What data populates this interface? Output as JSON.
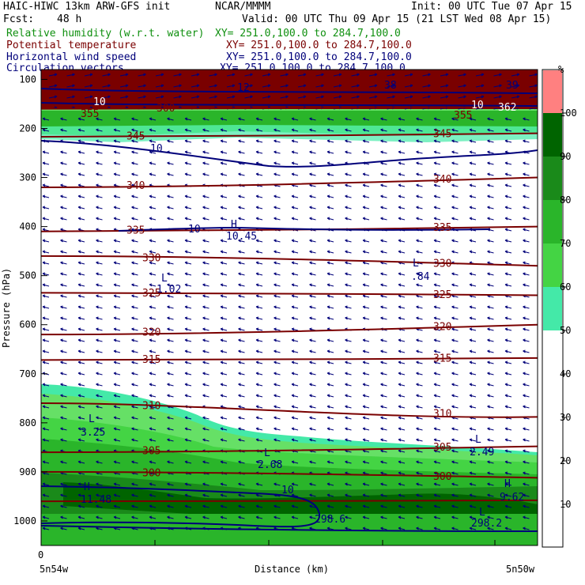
{
  "header": {
    "model": "HAIC-HIWC 13km ARW-GFS init",
    "org": "NCAR/MMMM",
    "init": "Init: 00 UTC Tue 07 Apr 15",
    "fcst_label": "Fcst:",
    "fcst_value": "48 h",
    "valid": "Valid: 00 UTC Thu 09 Apr 15 (21 LST Wed 08 Apr 15)"
  },
  "fields": [
    {
      "name": "Relative humidity (w.r.t. water)",
      "xy": "XY= 251.0,100.0 to 284.7,100.0",
      "color": "#109010"
    },
    {
      "name": "Potential temperature",
      "xy": "XY= 251.0,100.0 to 284.7,100.0",
      "color": "#7a0000"
    },
    {
      "name": "Horizontal wind speed",
      "xy": "XY= 251.0,100.0 to 284.7,100.0",
      "color": "#00007a"
    },
    {
      "name": "Circulation vectors",
      "xy": "XY= 251.0,100.0 to 284.7,100.0",
      "color": "#00007a"
    }
  ],
  "axes": {
    "ylabel": "Pressure (hPa)",
    "xlabel": "Distance (km)",
    "x_start_tick": "0",
    "x_left_label": "5n54w",
    "x_right_label": "5n50w"
  },
  "colorbar": {
    "unit": "%",
    "labels": [
      "100",
      "90",
      "80",
      "70",
      "60",
      "50",
      "40",
      "30",
      "20",
      "10"
    ],
    "colors": [
      "#ff8080",
      "#006400",
      "#1a8a1a",
      "#2ab52a",
      "#44d444",
      "#66e066",
      "#44e9a8"
    ]
  },
  "colors": {
    "theta": "#7a0000",
    "wind": "#00007a",
    "vector": "#00007a",
    "rh_top": "#7a0000"
  },
  "chart_data": {
    "type": "cross-section",
    "y_axis": {
      "label": "Pressure (hPa)",
      "range": [
        1050,
        80
      ],
      "ticks": [
        100,
        200,
        300,
        400,
        500,
        600,
        700,
        800,
        900,
        1000
      ]
    },
    "x_axis": {
      "label": "Distance (km)",
      "start": "0",
      "left_point": "5n54w",
      "right_point": "5n50w"
    },
    "rh_levels": [
      50,
      60,
      70,
      80,
      90,
      100
    ],
    "theta_contours": [
      {
        "value": "355",
        "y_left": 143,
        "y_right": 140
      },
      {
        "value": "350",
        "y_left": 160,
        "y_right": 157
      },
      {
        "value": "345",
        "y_left": 217,
        "y_right": 210
      },
      {
        "value": "340",
        "y_left": 320,
        "y_right": 300
      },
      {
        "value": "335",
        "y_left": 410,
        "y_right": 400
      },
      {
        "value": "330",
        "y_left": 460,
        "y_right": 480
      },
      {
        "value": "325",
        "y_left": 535,
        "y_right": 540
      },
      {
        "value": "320",
        "y_left": 620,
        "y_right": 600
      },
      {
        "value": "315",
        "y_left": 672,
        "y_right": 668
      },
      {
        "value": "310",
        "y_left": 760,
        "y_right": 788
      },
      {
        "value": "305",
        "y_left": 860,
        "y_right": 848
      },
      {
        "value": "300",
        "y_left": 900,
        "y_right": 912
      },
      {
        "value": "298.6",
        "y_left": 960,
        "y_right": 958
      }
    ],
    "wind_contours": [
      {
        "value": "10",
        "label_pos": "upper"
      },
      {
        "value": "10",
        "label_pos": "mid"
      },
      {
        "value": "10",
        "label_pos": "lower"
      }
    ],
    "extrema": [
      {
        "type": "H",
        "value": "10.45"
      },
      {
        "type": "L",
        "value": "1.02"
      },
      {
        "type": "L",
        "value": ".84"
      },
      {
        "type": "L",
        "value": "3.25"
      },
      {
        "type": "L",
        "value": "2.68"
      },
      {
        "type": "L",
        "value": "2.49"
      },
      {
        "type": "H",
        "value": "11.48"
      },
      {
        "type": "H",
        "value": "9.62"
      },
      {
        "type": "L",
        "value": "298.6"
      },
      {
        "type": "L",
        "value": "298.2"
      }
    ],
    "top_labels": [
      "12",
      "38",
      "39",
      "10",
      "355",
      "300",
      "10",
      "355",
      "362"
    ]
  }
}
